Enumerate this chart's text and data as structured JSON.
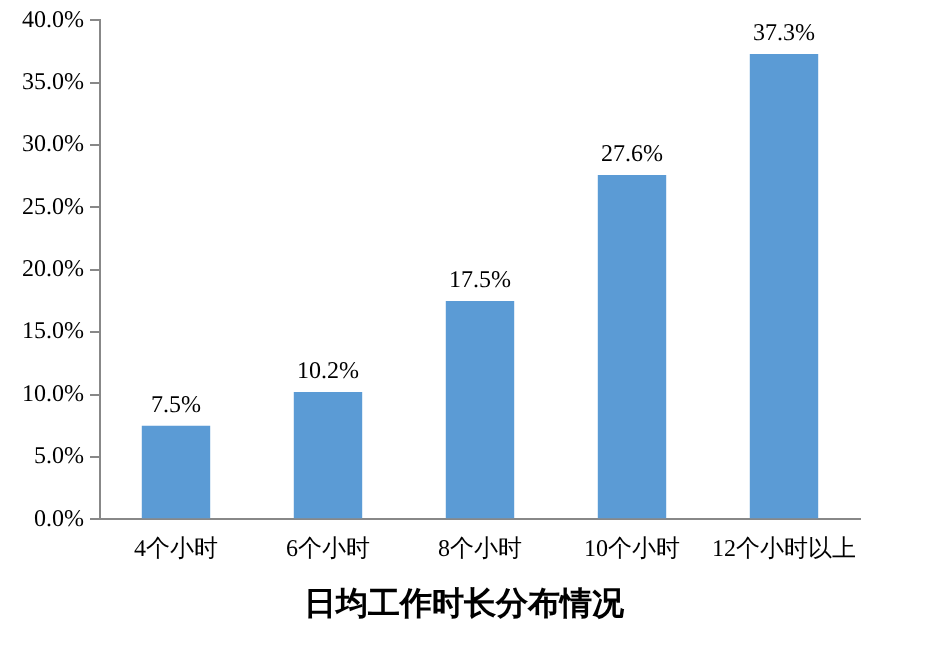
{
  "chart_data": {
    "type": "bar",
    "title": "日均工作时长分布情况",
    "categories": [
      "4个小时",
      "6个小时",
      "8个小时",
      "10个小时",
      "12个小时以上"
    ],
    "values": [
      7.5,
      10.2,
      17.5,
      27.6,
      37.3
    ],
    "value_labels": [
      "7.5%",
      "10.2%",
      "17.5%",
      "27.6%",
      "37.3%"
    ],
    "color": "#5b9bd5",
    "ylim": [
      0,
      40
    ],
    "yticks": [
      {
        "value": 0,
        "label": "0.0%"
      },
      {
        "value": 5,
        "label": "5.0%"
      },
      {
        "value": 10,
        "label": "10.0%"
      },
      {
        "value": 15,
        "label": "15.0%"
      },
      {
        "value": 20,
        "label": "20.0%"
      },
      {
        "value": 25,
        "label": "25.0%"
      },
      {
        "value": 30,
        "label": "30.0%"
      },
      {
        "value": 35,
        "label": "35.0%"
      },
      {
        "value": 40,
        "label": "40.0%"
      }
    ],
    "grid": false,
    "legend": false
  }
}
